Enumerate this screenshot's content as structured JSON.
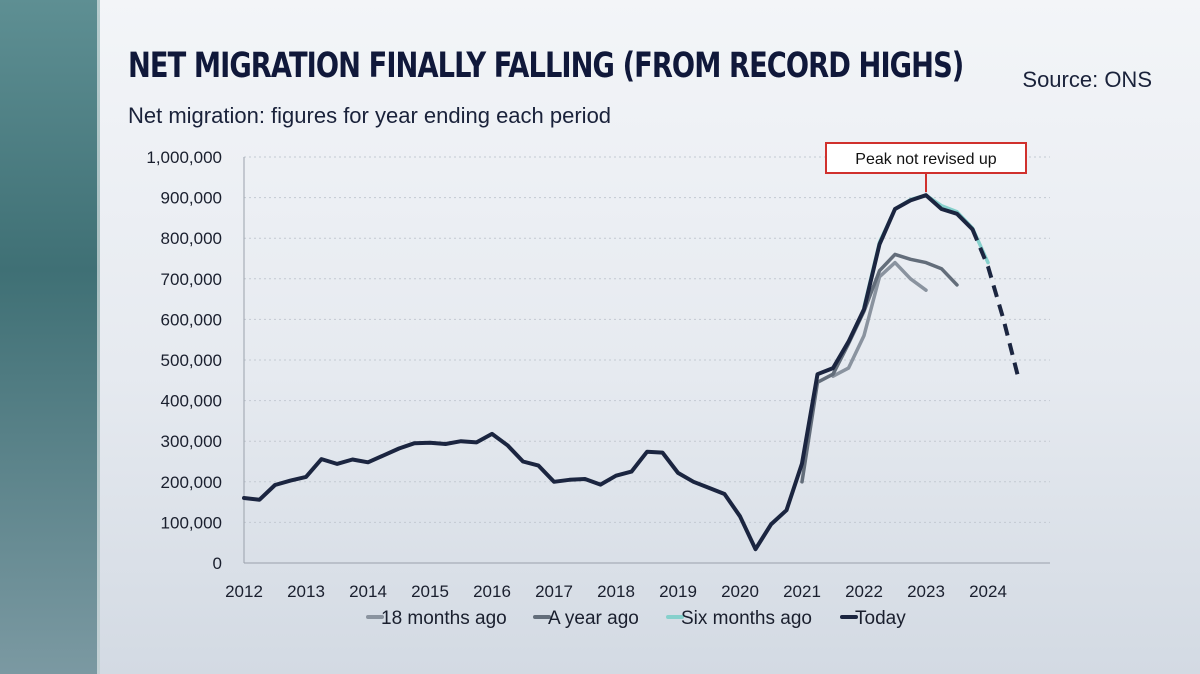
{
  "header": {
    "title": "Net migration finally falling (from record highs)",
    "source": "Source: ONS",
    "subtitle": "Net migration: figures for year ending each period"
  },
  "chart_data": {
    "type": "line",
    "title": "Net migration finally falling (from record highs)",
    "subtitle": "Net migration: figures for year ending each period",
    "xlabel": "",
    "ylabel": "",
    "xlim": [
      2012,
      2025
    ],
    "ylim": [
      0,
      1000000
    ],
    "y_ticks": [
      0,
      100000,
      200000,
      300000,
      400000,
      500000,
      600000,
      700000,
      800000,
      900000,
      1000000
    ],
    "y_tick_labels": [
      "0",
      "100,000",
      "200,000",
      "300,000",
      "400,000",
      "500,000",
      "600,000",
      "700,000",
      "800,000",
      "900,000",
      "1,000,000"
    ],
    "x_ticks": [
      2012,
      2013,
      2014,
      2015,
      2016,
      2017,
      2018,
      2019,
      2020,
      2021,
      2022,
      2023,
      2024
    ],
    "x_tick_labels": [
      "2012",
      "2013",
      "2014",
      "2015",
      "2016",
      "2017",
      "2018",
      "2019",
      "2020",
      "2021",
      "2022",
      "2023",
      "2024"
    ],
    "grid": "horizontal-dotted",
    "legend_position": "bottom",
    "annotation": {
      "text": "Peak not revised up",
      "x": 2023.0,
      "y": 906000,
      "color": "#d0312d"
    },
    "series": [
      {
        "name": "18 months ago",
        "color": "#8a939f",
        "points": [
          [
            2021.5,
            460000
          ],
          [
            2021.75,
            480000
          ],
          [
            2022.0,
            560000
          ],
          [
            2022.25,
            705000
          ],
          [
            2022.5,
            740000
          ],
          [
            2022.75,
            700000
          ],
          [
            2023.0,
            672000
          ]
        ]
      },
      {
        "name": "A year ago",
        "color": "#636d7a",
        "points": [
          [
            2021.0,
            200000
          ],
          [
            2021.25,
            445000
          ],
          [
            2021.5,
            465000
          ],
          [
            2021.75,
            540000
          ],
          [
            2022.0,
            620000
          ],
          [
            2022.25,
            720000
          ],
          [
            2022.5,
            760000
          ],
          [
            2022.75,
            748000
          ],
          [
            2023.0,
            740000
          ],
          [
            2023.25,
            725000
          ],
          [
            2023.5,
            685000
          ]
        ]
      },
      {
        "name": "Six months ago",
        "color": "#86d0cc",
        "points": [
          [
            2022.0,
            630000
          ],
          [
            2022.25,
            790000
          ],
          [
            2022.5,
            872000
          ],
          [
            2022.75,
            895000
          ],
          [
            2023.0,
            906000
          ],
          [
            2023.25,
            880000
          ],
          [
            2023.5,
            865000
          ],
          [
            2023.75,
            825000
          ],
          [
            2024.0,
            740000
          ]
        ]
      },
      {
        "name": "Today",
        "color": "#1b2540",
        "points": [
          [
            2012.0,
            160000
          ],
          [
            2012.25,
            156000
          ],
          [
            2012.5,
            192000
          ],
          [
            2012.75,
            203000
          ],
          [
            2013.0,
            212000
          ],
          [
            2013.25,
            256000
          ],
          [
            2013.5,
            244000
          ],
          [
            2013.75,
            255000
          ],
          [
            2014.0,
            248000
          ],
          [
            2014.25,
            265000
          ],
          [
            2014.5,
            282000
          ],
          [
            2014.75,
            295000
          ],
          [
            2015.0,
            296000
          ],
          [
            2015.25,
            293000
          ],
          [
            2015.5,
            300000
          ],
          [
            2015.75,
            297000
          ],
          [
            2016.0,
            318000
          ],
          [
            2016.25,
            290000
          ],
          [
            2016.5,
            250000
          ],
          [
            2016.75,
            240000
          ],
          [
            2017.0,
            200000
          ],
          [
            2017.25,
            205000
          ],
          [
            2017.5,
            207000
          ],
          [
            2017.75,
            193000
          ],
          [
            2018.0,
            215000
          ],
          [
            2018.25,
            225000
          ],
          [
            2018.5,
            274000
          ],
          [
            2018.75,
            272000
          ],
          [
            2019.0,
            222000
          ],
          [
            2019.25,
            200000
          ],
          [
            2019.5,
            185000
          ],
          [
            2019.75,
            170000
          ],
          [
            2020.0,
            115000
          ],
          [
            2020.25,
            34000
          ],
          [
            2020.5,
            95000
          ],
          [
            2020.75,
            130000
          ],
          [
            2021.0,
            245000
          ],
          [
            2021.25,
            465000
          ],
          [
            2021.5,
            480000
          ],
          [
            2021.75,
            545000
          ],
          [
            2022.0,
            625000
          ],
          [
            2022.25,
            785000
          ],
          [
            2022.5,
            872000
          ],
          [
            2022.75,
            893000
          ],
          [
            2023.0,
            906000
          ],
          [
            2023.25,
            872000
          ],
          [
            2023.5,
            860000
          ],
          [
            2023.75,
            822000
          ]
        ],
        "projection": {
          "style": "dashed",
          "points": [
            [
              2023.75,
              822000
            ],
            [
              2024.0,
              730000
            ],
            [
              2024.25,
              600000
            ],
            [
              2024.5,
              450000
            ]
          ]
        }
      }
    ]
  }
}
